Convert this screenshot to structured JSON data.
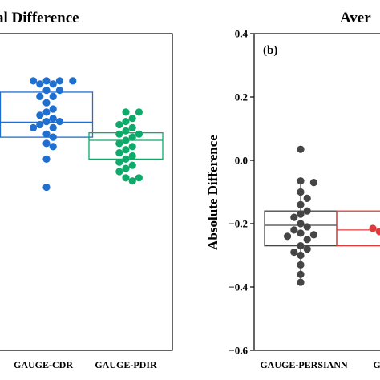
{
  "chart_data": [
    {
      "panel_label": "",
      "title": "al Difference",
      "type": "box-swarm",
      "ylabel": "",
      "categories": [
        "GAUGE-CDR",
        "GAUGE-PDIR"
      ],
      "series": [
        {
          "category": "GAUGE-CDR",
          "color": "#1f6fd1",
          "box": {
            "q1": 0.055,
            "median": 0.079,
            "q3": 0.127
          },
          "values": [
            0.145,
            0.145,
            0.145,
            0.145,
            0.14,
            0.14,
            0.13,
            0.13,
            0.12,
            0.12,
            0.11,
            0.1,
            0.095,
            0.09,
            0.085,
            0.08,
            0.08,
            0.075,
            0.07,
            0.07,
            0.06,
            0.055,
            0.045,
            0.04,
            0.02,
            -0.025
          ]
        },
        {
          "category": "GAUGE-PDIR",
          "color": "#0daa6a",
          "box": {
            "q1": 0.02,
            "median": 0.05,
            "q3": 0.062
          },
          "values": [
            0.095,
            0.095,
            0.085,
            0.08,
            0.075,
            0.07,
            0.065,
            0.06,
            0.06,
            0.055,
            0.05,
            0.045,
            0.04,
            0.035,
            0.03,
            0.025,
            0.02,
            0.015,
            0.01,
            0.005,
            0.0,
            -0.01,
            -0.01,
            -0.015
          ]
        }
      ]
    },
    {
      "panel_label": "(b)",
      "title": "Aver",
      "type": "box-swarm",
      "ylabel": "Absolute Difference",
      "ylim": [
        -0.6,
        0.4
      ],
      "yticks": [
        "0.4",
        "0.2",
        "0.0",
        "−0.2",
        "−0.4",
        "−0.6"
      ],
      "ytick_values": [
        0.4,
        0.2,
        0.0,
        -0.2,
        -0.4,
        -0.6
      ],
      "categories": [
        "GAUGE-PERSIANN",
        "G"
      ],
      "series": [
        {
          "category": "GAUGE-PERSIANN",
          "color": "#454545",
          "box": {
            "q1": -0.27,
            "median": -0.205,
            "q3": -0.16
          },
          "whisker_top": -0.065,
          "values": [
            0.035,
            -0.065,
            -0.07,
            -0.1,
            -0.12,
            -0.14,
            -0.16,
            -0.17,
            -0.18,
            -0.2,
            -0.21,
            -0.22,
            -0.23,
            -0.235,
            -0.24,
            -0.25,
            -0.27,
            -0.28,
            -0.29,
            -0.3,
            -0.33,
            -0.36,
            -0.385
          ]
        },
        {
          "category": "G",
          "color": "#e03b3b",
          "box": {
            "q1": -0.27,
            "median": -0.22,
            "q3": -0.16
          },
          "values": [
            -0.215,
            -0.225
          ]
        }
      ]
    }
  ]
}
